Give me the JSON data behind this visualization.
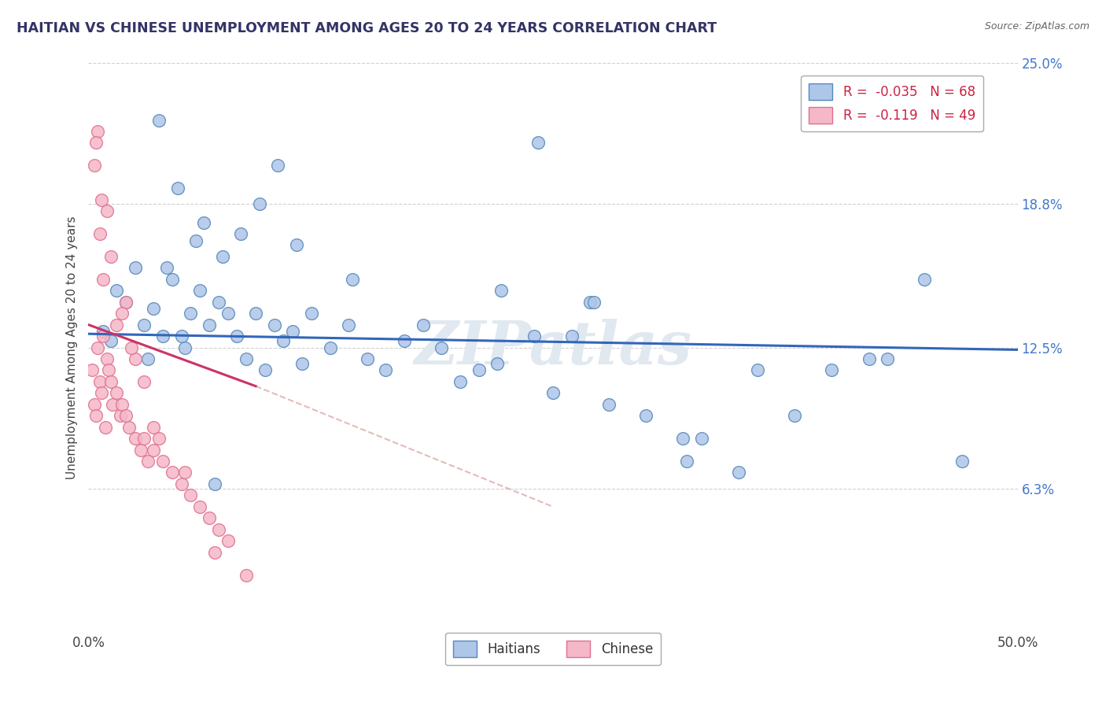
{
  "title": "HAITIAN VS CHINESE UNEMPLOYMENT AMONG AGES 20 TO 24 YEARS CORRELATION CHART",
  "source": "Source: ZipAtlas.com",
  "ylabel": "Unemployment Among Ages 20 to 24 years",
  "xlim": [
    0.0,
    50.0
  ],
  "ylim": [
    0.0,
    25.0
  ],
  "yticks_right": [
    6.3,
    12.5,
    18.8,
    25.0
  ],
  "ytick_labels_right": [
    "6.3%",
    "12.5%",
    "18.8%",
    "25.0%"
  ],
  "haitian_color": "#aec6e8",
  "haitian_edge_color": "#5588bb",
  "chinese_color": "#f5b8c8",
  "chinese_edge_color": "#e07090",
  "haitian_R": -0.035,
  "haitian_N": 68,
  "chinese_R": -0.119,
  "chinese_N": 49,
  "legend_haitian_label": "Haitians",
  "legend_chinese_label": "Chinese",
  "watermark": "ZIPatlas",
  "background_color": "#ffffff",
  "grid_color": "#cccccc",
  "haitian_line_color": "#3366bb",
  "chinese_line_color": "#cc3366",
  "chinese_line_dashed_color": "#ddaaaa",
  "haitian_line_y0": 13.1,
  "haitian_line_y1": 12.4,
  "chinese_solid_x0": 0.0,
  "chinese_solid_y0": 13.5,
  "chinese_solid_x1": 9.0,
  "chinese_solid_y1": 10.8,
  "chinese_dashed_x1": 25.0,
  "chinese_dashed_y1": 5.5,
  "haitian_scatter_x": [
    0.8,
    1.2,
    1.5,
    2.0,
    2.5,
    3.0,
    3.5,
    4.0,
    4.5,
    5.0,
    5.5,
    6.0,
    6.5,
    7.0,
    7.5,
    8.0,
    8.5,
    9.0,
    9.5,
    10.0,
    10.5,
    11.0,
    11.5,
    12.0,
    13.0,
    14.0,
    15.0,
    16.0,
    17.0,
    18.0,
    19.0,
    20.0,
    21.0,
    22.0,
    24.0,
    25.0,
    26.0,
    27.0,
    28.0,
    30.0,
    32.0,
    33.0,
    35.0,
    36.0,
    38.0,
    40.0,
    42.0,
    43.0,
    45.0,
    47.0,
    3.2,
    4.2,
    5.2,
    6.2,
    7.2,
    8.2,
    9.2,
    10.2,
    11.2,
    14.2,
    22.2,
    24.2,
    27.2,
    32.2,
    3.8,
    4.8,
    5.8,
    6.8
  ],
  "haitian_scatter_y": [
    13.2,
    12.8,
    15.0,
    14.5,
    16.0,
    13.5,
    14.2,
    13.0,
    15.5,
    13.0,
    14.0,
    15.0,
    13.5,
    14.5,
    14.0,
    13.0,
    12.0,
    14.0,
    11.5,
    13.5,
    12.8,
    13.2,
    11.8,
    14.0,
    12.5,
    13.5,
    12.0,
    11.5,
    12.8,
    13.5,
    12.5,
    11.0,
    11.5,
    11.8,
    13.0,
    10.5,
    13.0,
    14.5,
    10.0,
    9.5,
    8.5,
    8.5,
    7.0,
    11.5,
    9.5,
    11.5,
    12.0,
    12.0,
    15.5,
    7.5,
    12.0,
    16.0,
    12.5,
    18.0,
    16.5,
    17.5,
    18.8,
    20.5,
    17.0,
    15.5,
    15.0,
    21.5,
    14.5,
    7.5,
    22.5,
    19.5,
    17.2,
    6.5
  ],
  "chinese_scatter_x": [
    0.2,
    0.3,
    0.4,
    0.5,
    0.6,
    0.7,
    0.8,
    0.9,
    1.0,
    1.1,
    1.2,
    1.3,
    1.5,
    1.7,
    1.8,
    2.0,
    2.2,
    2.5,
    2.8,
    3.0,
    3.2,
    3.5,
    4.0,
    4.5,
    5.0,
    5.5,
    6.0,
    6.5,
    7.0,
    7.5,
    0.3,
    0.5,
    0.7,
    1.0,
    1.5,
    2.0,
    2.5,
    3.0,
    3.5,
    0.4,
    0.6,
    0.8,
    1.2,
    1.8,
    2.3,
    3.8,
    5.2,
    6.8,
    8.5
  ],
  "chinese_scatter_y": [
    11.5,
    10.0,
    9.5,
    12.5,
    11.0,
    10.5,
    13.0,
    9.0,
    12.0,
    11.5,
    11.0,
    10.0,
    10.5,
    9.5,
    10.0,
    9.5,
    9.0,
    8.5,
    8.0,
    8.5,
    7.5,
    8.0,
    7.5,
    7.0,
    6.5,
    6.0,
    5.5,
    5.0,
    4.5,
    4.0,
    20.5,
    22.0,
    19.0,
    18.5,
    13.5,
    14.5,
    12.0,
    11.0,
    9.0,
    21.5,
    17.5,
    15.5,
    16.5,
    14.0,
    12.5,
    8.5,
    7.0,
    3.5,
    2.5
  ]
}
